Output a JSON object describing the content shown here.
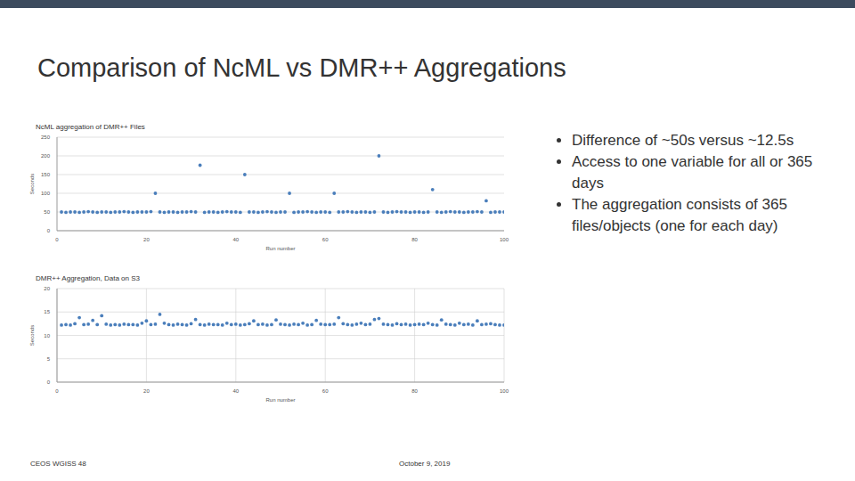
{
  "slide": {
    "title": "Comparison of NcML vs DMR++ Aggregations",
    "bullets": [
      "Difference of ~50s versus ~12.5s",
      "Access to one variable for all or 365 days",
      "The aggregation consists of 365 files/objects (one for each day)"
    ],
    "footer_left": "CEOS WGISS 48",
    "footer_right": "October 9, 2019"
  },
  "chart_data": [
    {
      "type": "scatter",
      "title": "NcML aggregation of DMR++ Files",
      "x_label": "Run number",
      "y_label": "Seconds",
      "x": [
        1,
        2,
        3,
        4,
        5,
        6,
        7,
        8,
        9,
        10,
        11,
        12,
        13,
        14,
        15,
        16,
        17,
        18,
        19,
        20,
        21,
        22,
        23,
        24,
        25,
        26,
        27,
        28,
        29,
        30,
        31,
        32,
        33,
        34,
        35,
        36,
        37,
        38,
        39,
        40,
        41,
        42,
        43,
        44,
        45,
        46,
        47,
        48,
        49,
        50,
        51,
        52,
        53,
        54,
        55,
        56,
        57,
        58,
        59,
        60,
        61,
        62,
        63,
        64,
        65,
        66,
        67,
        68,
        69,
        70,
        71,
        72,
        73,
        74,
        75,
        76,
        77,
        78,
        79,
        80,
        81,
        82,
        83,
        84,
        85,
        86,
        87,
        88,
        89,
        90,
        91,
        92,
        93,
        94,
        95,
        96,
        97,
        98,
        99,
        100
      ],
      "values": [
        50,
        49,
        50,
        50,
        49,
        50,
        51,
        50,
        49,
        50,
        50,
        49,
        50,
        50,
        51,
        50,
        49,
        50,
        50,
        50,
        51,
        100,
        50,
        49,
        50,
        50,
        49,
        50,
        50,
        51,
        50,
        175,
        49,
        50,
        50,
        49,
        50,
        51,
        50,
        50,
        49,
        150,
        50,
        50,
        49,
        50,
        51,
        50,
        49,
        50,
        50,
        100,
        49,
        50,
        50,
        51,
        50,
        49,
        50,
        50,
        49,
        100,
        50,
        50,
        51,
        50,
        49,
        50,
        50,
        49,
        50,
        200,
        50,
        49,
        50,
        51,
        50,
        50,
        49,
        50,
        50,
        49,
        50,
        110,
        50,
        49,
        50,
        51,
        50,
        50,
        49,
        50,
        50,
        51,
        50,
        80,
        49,
        50,
        50,
        50
      ],
      "color": "#4a7ebb",
      "marker": "circle",
      "xlim": [
        0,
        100
      ],
      "xticks": [
        0,
        20,
        40,
        60,
        80,
        100
      ],
      "ylim": [
        0,
        250
      ],
      "yticks": [
        0,
        50,
        100,
        150,
        200,
        250
      ],
      "grid": "y"
    },
    {
      "type": "scatter",
      "title": "DMR++ Aggregation, Data on S3",
      "x_label": "Run number",
      "y_label": "Seconds",
      "x": [
        1,
        2,
        3,
        4,
        5,
        6,
        7,
        8,
        9,
        10,
        11,
        12,
        13,
        14,
        15,
        16,
        17,
        18,
        19,
        20,
        21,
        22,
        23,
        24,
        25,
        26,
        27,
        28,
        29,
        30,
        31,
        32,
        33,
        34,
        35,
        36,
        37,
        38,
        39,
        40,
        41,
        42,
        43,
        44,
        45,
        46,
        47,
        48,
        49,
        50,
        51,
        52,
        53,
        54,
        55,
        56,
        57,
        58,
        59,
        60,
        61,
        62,
        63,
        64,
        65,
        66,
        67,
        68,
        69,
        70,
        71,
        72,
        73,
        74,
        75,
        76,
        77,
        78,
        79,
        80,
        81,
        82,
        83,
        84,
        85,
        86,
        87,
        88,
        89,
        90,
        91,
        92,
        93,
        94,
        95,
        96,
        97,
        98,
        99,
        100
      ],
      "values": [
        12.2,
        12.3,
        12.2,
        12.5,
        13.8,
        12.3,
        12.4,
        13.2,
        12.3,
        14.2,
        12.4,
        12.2,
        12.3,
        12.2,
        12.4,
        12.3,
        12.3,
        12.2,
        12.6,
        13.1,
        12.3,
        12.4,
        14.5,
        12.6,
        12.3,
        12.2,
        12.4,
        12.3,
        12.2,
        12.5,
        13.4,
        12.3,
        12.2,
        12.4,
        12.3,
        12.3,
        12.2,
        12.6,
        12.3,
        12.4,
        12.2,
        12.3,
        12.5,
        13.1,
        12.3,
        12.4,
        12.2,
        12.3,
        13.3,
        12.4,
        12.3,
        12.2,
        12.4,
        12.3,
        12.6,
        12.2,
        12.3,
        13.2,
        12.4,
        12.3,
        12.3,
        12.4,
        13.8,
        12.5,
        12.3,
        12.2,
        12.4,
        12.6,
        12.3,
        12.4,
        13.4,
        13.6,
        12.4,
        12.3,
        12.2,
        12.5,
        12.3,
        12.4,
        12.2,
        12.3,
        12.4,
        12.3,
        12.6,
        12.3,
        12.2,
        13.3,
        12.4,
        12.3,
        12.2,
        12.6,
        12.3,
        12.4,
        12.2,
        13.1,
        12.3,
        12.4,
        12.5,
        12.3,
        12.2,
        12.2
      ],
      "color": "#4a7ebb",
      "marker": "circle",
      "xlim": [
        0,
        100
      ],
      "xticks": [
        0,
        20,
        40,
        60,
        80,
        100
      ],
      "ylim": [
        0,
        20
      ],
      "yticks": [
        0,
        5,
        10,
        15,
        20
      ],
      "grid": "both"
    }
  ]
}
